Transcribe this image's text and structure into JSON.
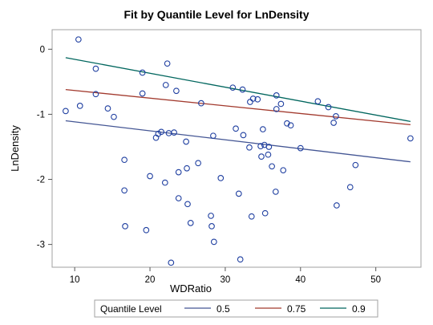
{
  "chart_data": {
    "type": "scatter",
    "title": "Fit by Quantile Level for LnDensity",
    "xlabel": "WDRatio",
    "ylabel": "LnDensity",
    "xlim": [
      7,
      56
    ],
    "ylim": [
      -3.35,
      0.3
    ],
    "x_ticks": [
      10,
      20,
      30,
      40,
      50
    ],
    "y_ticks": [
      0,
      -1,
      -2,
      -3
    ],
    "grid": false,
    "legend_title": "Quantile Level",
    "legend_position": "bottom",
    "marker_color": "#1f3fa0",
    "points": [
      {
        "x": 8.8,
        "y": -0.95
      },
      {
        "x": 10.5,
        "y": 0.15
      },
      {
        "x": 10.7,
        "y": -0.87
      },
      {
        "x": 12.8,
        "y": -0.3
      },
      {
        "x": 12.8,
        "y": -0.69
      },
      {
        "x": 14.4,
        "y": -0.91
      },
      {
        "x": 15.2,
        "y": -1.04
      },
      {
        "x": 16.6,
        "y": -1.7
      },
      {
        "x": 16.6,
        "y": -2.17
      },
      {
        "x": 16.7,
        "y": -2.72
      },
      {
        "x": 19.0,
        "y": -0.36
      },
      {
        "x": 19.0,
        "y": -0.68
      },
      {
        "x": 19.5,
        "y": -2.78
      },
      {
        "x": 20.0,
        "y": -1.95
      },
      {
        "x": 20.8,
        "y": -1.36
      },
      {
        "x": 21.1,
        "y": -1.3
      },
      {
        "x": 21.5,
        "y": -1.27
      },
      {
        "x": 22.0,
        "y": -2.05
      },
      {
        "x": 22.1,
        "y": -0.55
      },
      {
        "x": 22.3,
        "y": -0.22
      },
      {
        "x": 22.5,
        "y": -1.29
      },
      {
        "x": 22.8,
        "y": -3.28
      },
      {
        "x": 23.2,
        "y": -1.28
      },
      {
        "x": 23.5,
        "y": -0.64
      },
      {
        "x": 23.8,
        "y": -1.89
      },
      {
        "x": 23.8,
        "y": -2.29
      },
      {
        "x": 24.8,
        "y": -1.42
      },
      {
        "x": 24.9,
        "y": -1.83
      },
      {
        "x": 25.0,
        "y": -2.38
      },
      {
        "x": 25.4,
        "y": -2.67
      },
      {
        "x": 26.4,
        "y": -1.75
      },
      {
        "x": 26.8,
        "y": -0.83
      },
      {
        "x": 28.1,
        "y": -2.56
      },
      {
        "x": 28.2,
        "y": -2.72
      },
      {
        "x": 28.4,
        "y": -1.33
      },
      {
        "x": 28.5,
        "y": -2.96
      },
      {
        "x": 29.4,
        "y": -1.98
      },
      {
        "x": 31.0,
        "y": -0.59
      },
      {
        "x": 31.4,
        "y": -1.22
      },
      {
        "x": 31.8,
        "y": -2.22
      },
      {
        "x": 32.0,
        "y": -3.23
      },
      {
        "x": 32.3,
        "y": -0.62
      },
      {
        "x": 32.4,
        "y": -1.32
      },
      {
        "x": 33.2,
        "y": -1.51
      },
      {
        "x": 33.3,
        "y": -0.81
      },
      {
        "x": 33.5,
        "y": -2.57
      },
      {
        "x": 33.7,
        "y": -0.76
      },
      {
        "x": 34.3,
        "y": -0.77
      },
      {
        "x": 34.7,
        "y": -1.49
      },
      {
        "x": 34.8,
        "y": -1.65
      },
      {
        "x": 35.0,
        "y": -1.23
      },
      {
        "x": 35.2,
        "y": -1.47
      },
      {
        "x": 35.3,
        "y": -2.52
      },
      {
        "x": 35.7,
        "y": -1.62
      },
      {
        "x": 35.8,
        "y": -1.5
      },
      {
        "x": 36.2,
        "y": -1.8
      },
      {
        "x": 36.7,
        "y": -2.19
      },
      {
        "x": 36.8,
        "y": -0.71
      },
      {
        "x": 36.8,
        "y": -0.92
      },
      {
        "x": 37.4,
        "y": -0.84
      },
      {
        "x": 37.7,
        "y": -1.86
      },
      {
        "x": 38.2,
        "y": -1.14
      },
      {
        "x": 38.7,
        "y": -1.17
      },
      {
        "x": 40.0,
        "y": -1.52
      },
      {
        "x": 42.3,
        "y": -0.8
      },
      {
        "x": 43.7,
        "y": -0.89
      },
      {
        "x": 44.4,
        "y": -1.13
      },
      {
        "x": 44.7,
        "y": -1.03
      },
      {
        "x": 44.8,
        "y": -2.4
      },
      {
        "x": 46.6,
        "y": -2.12
      },
      {
        "x": 47.3,
        "y": -1.78
      },
      {
        "x": 54.6,
        "y": -1.37
      }
    ],
    "series": [
      {
        "name": "0.5",
        "color": "#445694",
        "x": [
          8.8,
          54.6
        ],
        "y": [
          -1.1,
          -1.73
        ]
      },
      {
        "name": "0.75",
        "color": "#a23a2e",
        "x": [
          8.8,
          54.6
        ],
        "y": [
          -0.62,
          -1.16
        ]
      },
      {
        "name": "0.9",
        "color": "#01665e",
        "x": [
          8.8,
          54.6
        ],
        "y": [
          -0.13,
          -1.11
        ]
      }
    ]
  }
}
